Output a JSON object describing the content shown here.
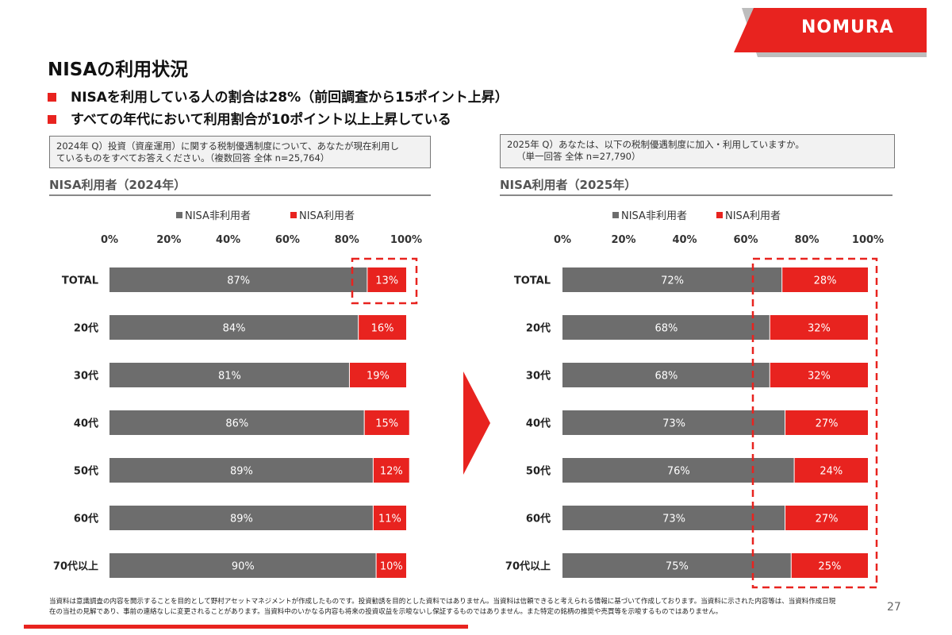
{
  "brand": {
    "logo_text": "NOMURA",
    "accent": "#e8231f",
    "nonuser_color": "#6d6d6d",
    "user_color": "#e8231f"
  },
  "page": {
    "title": "NISAの利用状況",
    "bullets": [
      "NISAを利用している人の割合は28%（前回調査から15ポイント上昇）",
      "すべての年代において利用割合が10ポイント以上上昇している"
    ],
    "page_number": "27",
    "footer": [
      "当資料は意識調査の内容を開示することを目的として野村アセットマネジメントが作成したものです。投資勧誘を目的とした資料ではありません。当資料は信頼できると考えられる情報に基づいて作成しております。当資料に示された内容等は、当資料作成日現",
      "在の当社の見解であり、事前の連絡なしに変更されることがあります。当資料中のいかなる内容も将来の投資収益を示唆ないし保証するものではありません。また特定の銘柄の推奨や売買等を示唆するものではありません。"
    ]
  },
  "left_panel": {
    "question_line1": "2024年 Q）投資（資産運用）に関する税制優遇制度について、あなたが現在利用し",
    "question_line2": "ているものをすべてお答えください。（複数回答 全体 n=25,764）",
    "section_title": "NISA利用者（2024年）"
  },
  "right_panel": {
    "question_line1": "2025年 Q）あなたは、以下の税制優遇制度に加入・利用していますか。",
    "question_line2": "（単一回答 全体 n=27,790）",
    "section_title": "NISA利用者（2025年）"
  },
  "chart_data": [
    {
      "type": "bar",
      "orientation": "horizontal-stacked",
      "categories": [
        "TOTAL",
        "20代",
        "30代",
        "40代",
        "50代",
        "60代",
        "70代以上"
      ],
      "series": [
        {
          "name": "NISA非利用者",
          "values": [
            87,
            84,
            81,
            86,
            89,
            89,
            90
          ],
          "labels": [
            "87%",
            "84%",
            "81%",
            "86%",
            "89%",
            "89%",
            "90%"
          ]
        },
        {
          "name": "NISA利用者",
          "values": [
            13,
            16,
            19,
            15,
            12,
            11,
            10
          ],
          "labels": [
            "13%",
            "16%",
            "19%",
            "15%",
            "12%",
            "11%",
            "10%"
          ]
        }
      ],
      "x_ticks": [
        "0%",
        "20%",
        "40%",
        "60%",
        "80%",
        "100%"
      ],
      "xlim": [
        0,
        100
      ],
      "legend": "top",
      "grid": false,
      "highlight": "dashed box around TOTAL NISA利用者"
    },
    {
      "type": "bar",
      "orientation": "horizontal-stacked",
      "categories": [
        "TOTAL",
        "20代",
        "30代",
        "40代",
        "50代",
        "60代",
        "70代以上"
      ],
      "series": [
        {
          "name": "NISA非利用者",
          "values": [
            72,
            68,
            68,
            73,
            76,
            73,
            75
          ],
          "labels": [
            "72%",
            "68%",
            "68%",
            "73%",
            "76%",
            "73%",
            "75%"
          ]
        },
        {
          "name": "NISA利用者",
          "values": [
            28,
            32,
            32,
            27,
            24,
            27,
            25
          ],
          "labels": [
            "28%",
            "32%",
            "32%",
            "27%",
            "24%",
            "27%",
            "25%"
          ]
        }
      ],
      "x_ticks": [
        "0%",
        "20%",
        "40%",
        "60%",
        "80%",
        "100%"
      ],
      "xlim": [
        0,
        100
      ],
      "legend": "top",
      "grid": false,
      "highlight": "dashed box around all NISA利用者 bars"
    }
  ]
}
